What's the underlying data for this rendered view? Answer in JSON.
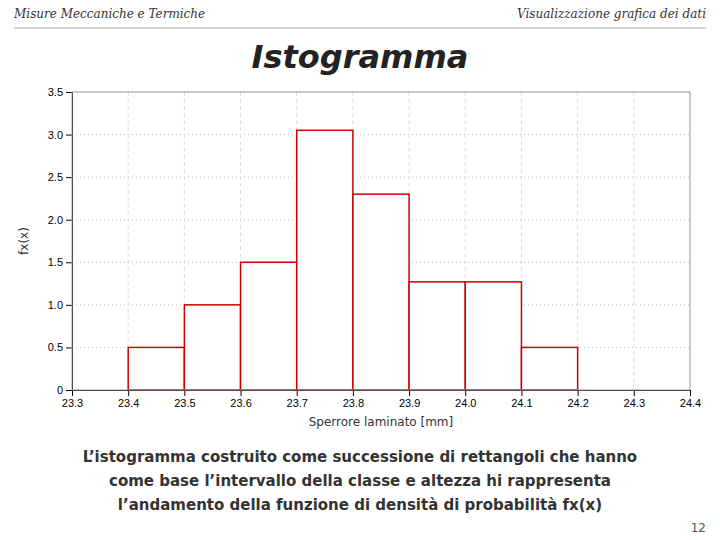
{
  "chart_data": {
    "type": "histogram",
    "title": "Istogramma",
    "header": [
      "Misure Meccaniche e Termiche",
      "Visualizzazione grafica dei dati"
    ],
    "xlabel": "Sperrore laminato [mm]",
    "ylabel": "fx(x)",
    "bins": [
      23.4,
      23.5,
      23.6,
      23.7,
      23.8,
      23.9,
      24.0,
      24.1,
      24.2
    ],
    "values": [
      0.5,
      1.0,
      1.5,
      3.05,
      2.3,
      1.27,
      1.27,
      0.5
    ],
    "color": "#cc0000",
    "xlim": [
      23.3,
      24.4
    ],
    "ylim": [
      0,
      3.5
    ],
    "xticks": [
      23.3,
      23.4,
      23.5,
      23.6,
      23.7,
      23.8,
      23.9,
      {
        "value": 24.0,
        "label": "24.0"
      },
      24.1,
      24.2,
      24.3,
      24.4
    ],
    "yticks": [
      0,
      0.5,
      {
        "value": 1.0,
        "label": "1.0"
      },
      1.5,
      {
        "value": 2.0,
        "label": "2.0"
      },
      2.5,
      {
        "value": 3.0,
        "label": "3.0"
      },
      3.5
    ],
    "grid": true,
    "footer": [
      "L’istogramma costruito come successione di rettangoli che hanno",
      "come base l’intervallo della classe e altezza hi rappresenta",
      "l’andamento della funzione di densità di probabilità fx(x)"
    ],
    "page_number": "12"
  }
}
